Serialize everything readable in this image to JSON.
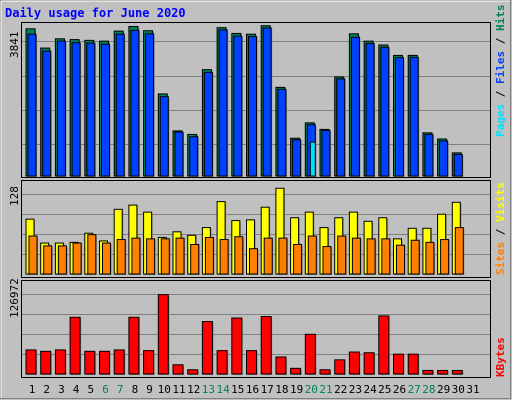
{
  "chart_data": [
    {
      "type": "bar",
      "title": "Daily usage for June 2020",
      "categories": [
        "1",
        "2",
        "3",
        "4",
        "5",
        "6",
        "7",
        "8",
        "9",
        "10",
        "11",
        "12",
        "13",
        "14",
        "15",
        "16",
        "17",
        "18",
        "19",
        "20",
        "21",
        "22",
        "23",
        "24",
        "25",
        "26",
        "27",
        "28",
        "29",
        "30",
        "31"
      ],
      "weekend_days": [
        "6",
        "7",
        "13",
        "14",
        "20",
        "21",
        "27",
        "28"
      ],
      "ytick": "3841",
      "ylim": [
        0,
        3841
      ],
      "ylabel": [
        "Pages",
        "Files",
        "Hits"
      ],
      "series": [
        {
          "name": "Hits",
          "values": [
            3820,
            3320,
            3560,
            3540,
            3520,
            3500,
            3760,
            3880,
            3770,
            2130,
            1170,
            1080,
            2760,
            3850,
            3700,
            3680,
            3900,
            2300,
            980,
            1380,
            1210,
            2570,
            3690,
            3500,
            3400,
            3130,
            3130,
            1120,
            960,
            600,
            null
          ]
        },
        {
          "name": "Files",
          "values": [
            3680,
            3240,
            3500,
            3460,
            3450,
            3420,
            3680,
            3780,
            3690,
            2060,
            1140,
            1020,
            2690,
            3790,
            3630,
            3620,
            3840,
            2250,
            940,
            1330,
            1180,
            2520,
            3600,
            3440,
            3340,
            3070,
            3080,
            1080,
            910,
            560,
            null
          ]
        },
        {
          "name": "Pages",
          "values": [
            null,
            null,
            null,
            null,
            null,
            null,
            null,
            null,
            null,
            null,
            null,
            null,
            null,
            null,
            null,
            null,
            null,
            null,
            null,
            880,
            null,
            null,
            null,
            null,
            null,
            null,
            null,
            null,
            null,
            null,
            null
          ]
        }
      ],
      "colors": {
        "Hits": "#00805c",
        "Files": "#0040ff",
        "Pages": "#00e0ff"
      }
    },
    {
      "type": "bar",
      "categories": [
        "1",
        "2",
        "3",
        "4",
        "5",
        "6",
        "7",
        "8",
        "9",
        "10",
        "11",
        "12",
        "13",
        "14",
        "15",
        "16",
        "17",
        "18",
        "19",
        "20",
        "21",
        "22",
        "23",
        "24",
        "25",
        "26",
        "27",
        "28",
        "29",
        "30",
        "31"
      ],
      "ytick": "128",
      "ylim": [
        0,
        128
      ],
      "ylabel": [
        "Sites",
        "Visits"
      ],
      "series": [
        {
          "name": "Visits",
          "values": [
            78,
            44,
            44,
            45,
            58,
            47,
            92,
            98,
            88,
            52,
            60,
            55,
            66,
            103,
            76,
            77,
            95,
            122,
            80,
            88,
            66,
            80,
            88,
            75,
            80,
            50,
            65,
            65,
            85,
            102,
            null
          ]
        },
        {
          "name": "Sites",
          "values": [
            54,
            40,
            40,
            44,
            56,
            44,
            49,
            51,
            50,
            50,
            51,
            42,
            52,
            49,
            53,
            36,
            51,
            51,
            42,
            54,
            39,
            54,
            51,
            50,
            50,
            41,
            48,
            45,
            49,
            66,
            null
          ]
        }
      ],
      "colors": {
        "Visits": "#ffff00",
        "Sites": "#ff8000"
      }
    },
    {
      "type": "bar",
      "categories": [
        "1",
        "2",
        "3",
        "4",
        "5",
        "6",
        "7",
        "8",
        "9",
        "10",
        "11",
        "12",
        "13",
        "14",
        "15",
        "16",
        "17",
        "18",
        "19",
        "20",
        "21",
        "22",
        "23",
        "24",
        "25",
        "26",
        "27",
        "28",
        "29",
        "30",
        "31"
      ],
      "ytick": "126972",
      "ylim": [
        0,
        126972
      ],
      "ylabel": [
        "KBytes"
      ],
      "series": [
        {
          "name": "KBytes",
          "values": [
            34000,
            32000,
            34000,
            80000,
            32000,
            32000,
            34000,
            80000,
            33000,
            112000,
            13000,
            6000,
            74000,
            33000,
            79000,
            33000,
            81000,
            24000,
            8000,
            56000,
            6000,
            20000,
            31000,
            30000,
            82000,
            28000,
            28000,
            5000,
            5000,
            5000,
            null
          ]
        }
      ],
      "colors": {
        "KBytes": "#ff0000"
      }
    }
  ]
}
